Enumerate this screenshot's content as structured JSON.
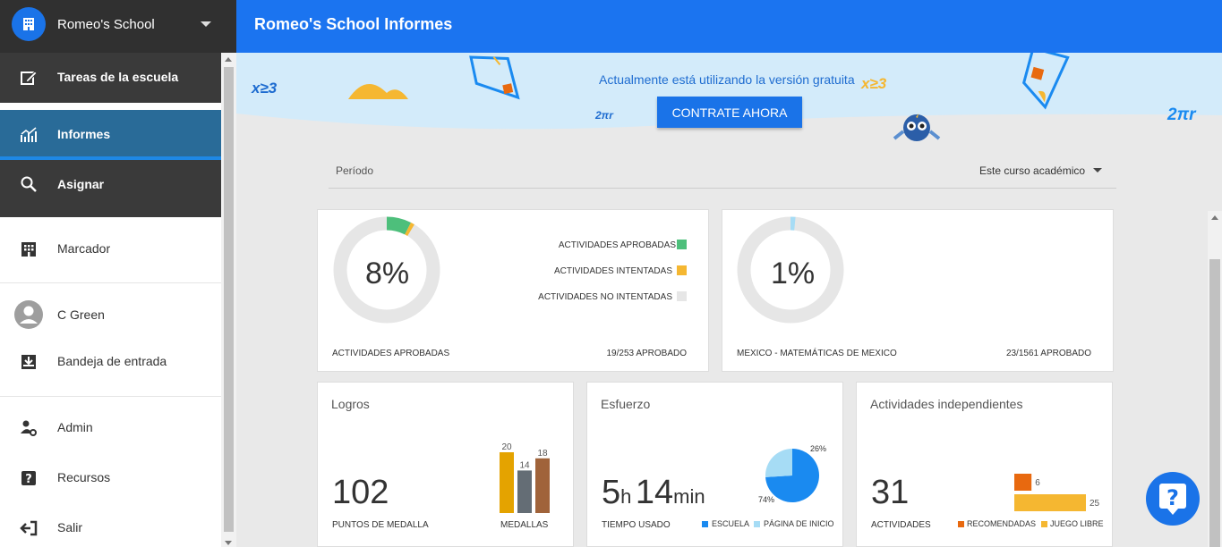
{
  "sidebar": {
    "school_name": "Romeo's School",
    "dark_items": [
      {
        "label": "Tareas de la escuela",
        "icon": "edit-icon"
      },
      {
        "label": "Informes",
        "icon": "chart-icon"
      },
      {
        "label": "Asignar",
        "icon": "search-icon"
      }
    ],
    "items": [
      {
        "label": "Marcador",
        "icon": "grid-icon"
      },
      {
        "label": "C Green",
        "icon": "avatar-icon"
      },
      {
        "label": "Bandeja de entrada",
        "icon": "inbox-icon"
      },
      {
        "label": "Admin",
        "icon": "user-gear-icon"
      },
      {
        "label": "Recursos",
        "icon": "help-box-icon"
      },
      {
        "label": "Salir",
        "icon": "exit-icon"
      }
    ]
  },
  "header": {
    "title": "Romeo's School Informes"
  },
  "banner": {
    "message": "Actualmente está utilizando la versión gratuita",
    "cta": "CONTRATE AHORA",
    "math_a": "x≥3",
    "math_b": "2πr"
  },
  "period": {
    "label": "Período",
    "value": "Este curso académico"
  },
  "card_activities": {
    "percent": "8%",
    "approved_fraction": 0.075,
    "attempted_fraction": 0.012,
    "legend": [
      {
        "label": "ACTIVIDADES APROBADAS",
        "color": "#4dbf7b"
      },
      {
        "label": "ACTIVIDADES INTENTADAS",
        "color": "#f5b731"
      },
      {
        "label": "ACTIVIDADES NO INTENTADAS",
        "color": "#e6e6e6"
      }
    ],
    "footer_left": "ACTIVIDADES APROBADAS",
    "footer_right": "19/253 APROBADO"
  },
  "card_course": {
    "percent": "1%",
    "fraction": 0.015,
    "color": "#a6dcf5",
    "footer_left": "MEXICO - MATEMÁTICAS DE MEXICO",
    "footer_right": "23/1561 APROBADO"
  },
  "card_logros": {
    "title": "Logros",
    "value": "102",
    "value_label": "PUNTOS DE MEDALLA",
    "chart_label": "MEDALLAS",
    "chart_data": {
      "type": "bar",
      "values": [
        20,
        14,
        18
      ],
      "colors": [
        "#e4a300",
        "#646d75",
        "#a0633a"
      ]
    }
  },
  "card_esfuerzo": {
    "title": "Esfuerzo",
    "hours": "5",
    "hours_unit": "h",
    "minutes": "14",
    "minutes_unit": "min",
    "value_label": "TIEMPO USADO",
    "chart_data": {
      "type": "pie",
      "slices": [
        {
          "name": "ESCUELA",
          "value": 74,
          "color": "#1a8af0",
          "label": "74%"
        },
        {
          "name": "PÁGINA DE INICIO",
          "value": 26,
          "color": "#a6dcf5",
          "label": "26%"
        }
      ]
    }
  },
  "card_independientes": {
    "title": "Actividades independientes",
    "value": "31",
    "value_label": "ACTIVIDADES",
    "chart_data": {
      "type": "bar",
      "orientation": "horizontal",
      "series": [
        {
          "name": "RECOMENDADAS",
          "value": 6,
          "color": "#e8690f"
        },
        {
          "name": "JUEGO LIBRE",
          "value": 25,
          "color": "#f5b731"
        }
      ]
    }
  },
  "help": {
    "icon": "question-icon"
  }
}
